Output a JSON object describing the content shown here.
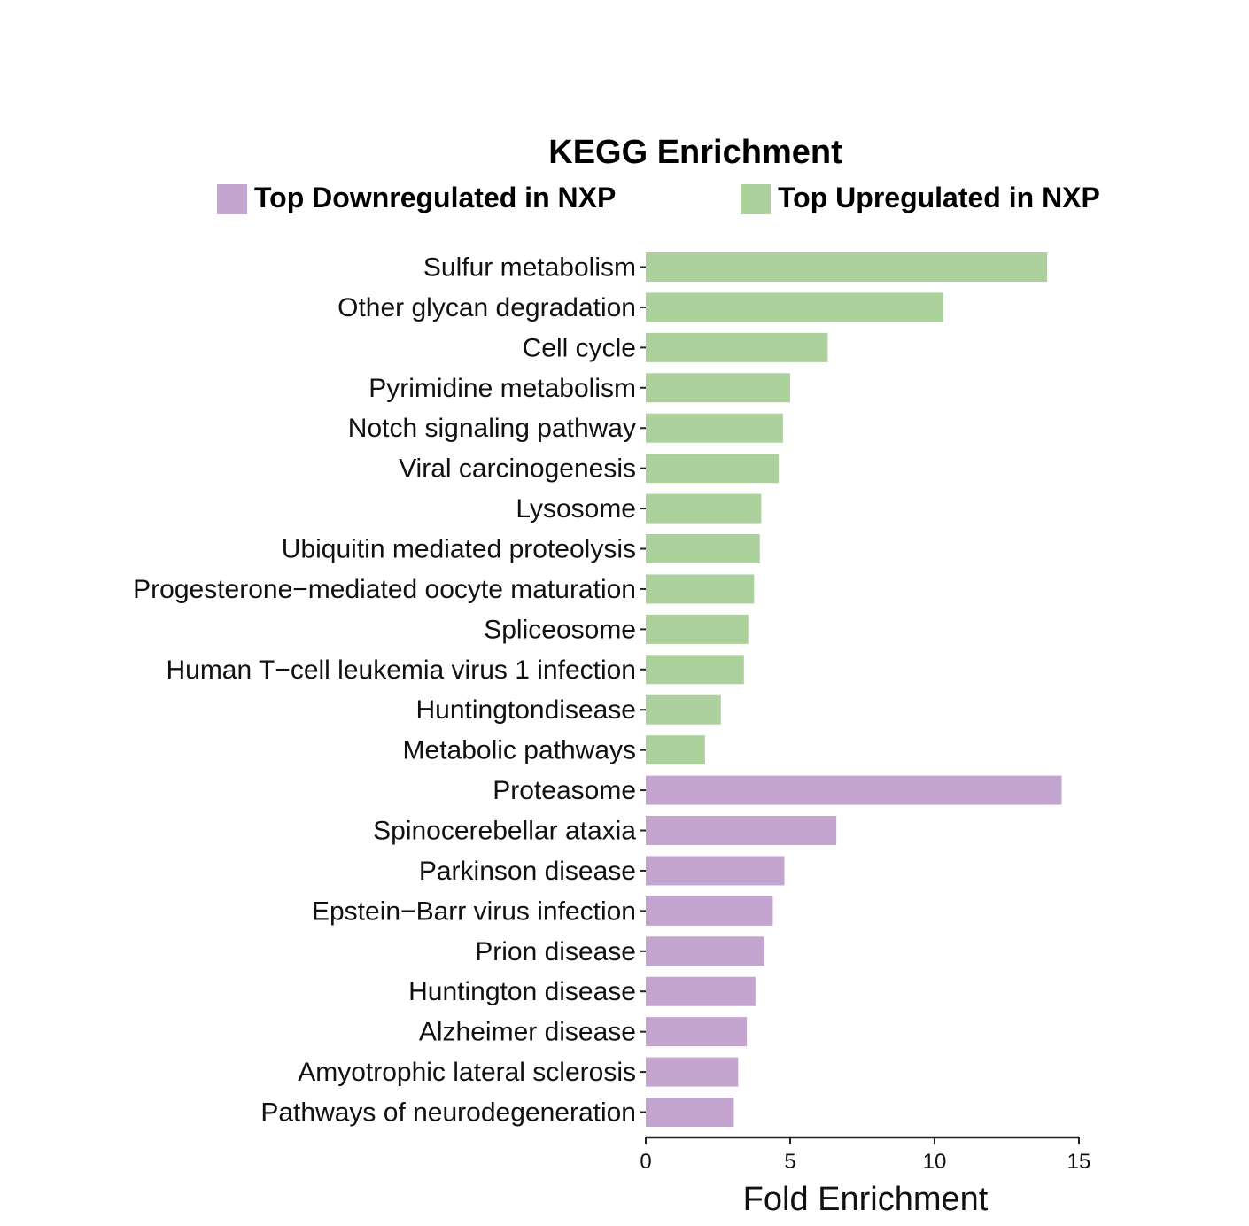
{
  "chart_data": {
    "type": "bar",
    "orientation": "horizontal",
    "title": "KEGG Enrichment",
    "xlabel": "Fold Enrichment",
    "ylabel": "",
    "xlim": [
      0,
      15
    ],
    "xticks": [
      0,
      5,
      10,
      15
    ],
    "grid": false,
    "legend_position": "top",
    "legend": [
      {
        "label": "Top Downregulated in NXP",
        "color": "#c3a5cf"
      },
      {
        "label": "Top Upregulated in NXP",
        "color": "#acd19c"
      }
    ],
    "categories": [
      "Sulfur metabolism",
      "Other glycan degradation",
      "Cell cycle",
      "Pyrimidine metabolism",
      "Notch signaling pathway",
      "Viral carcinogenesis",
      "Lysosome",
      "Ubiquitin mediated proteolysis",
      "Progesterone−mediated oocyte maturation",
      "Spliceosome",
      "Human T−cell leukemia virus 1 infection",
      "Huntingtondisease",
      "Metabolic pathways",
      "Proteasome",
      "Spinocerebellar ataxia",
      "Parkinson disease",
      "Epstein−Barr virus infection",
      "Prion disease",
      "Huntington disease",
      "Alzheimer disease",
      "Amyotrophic lateral sclerosis",
      "Pathways of neurodegeneration"
    ],
    "values": [
      13.9,
      10.3,
      6.3,
      5.0,
      4.75,
      4.6,
      4.0,
      3.95,
      3.75,
      3.55,
      3.4,
      2.6,
      2.05,
      14.4,
      6.6,
      4.8,
      4.4,
      4.1,
      3.8,
      3.5,
      3.2,
      3.05
    ],
    "groups": [
      "up",
      "up",
      "up",
      "up",
      "up",
      "up",
      "up",
      "up",
      "up",
      "up",
      "up",
      "up",
      "up",
      "down",
      "down",
      "down",
      "down",
      "down",
      "down",
      "down",
      "down",
      "down"
    ]
  }
}
